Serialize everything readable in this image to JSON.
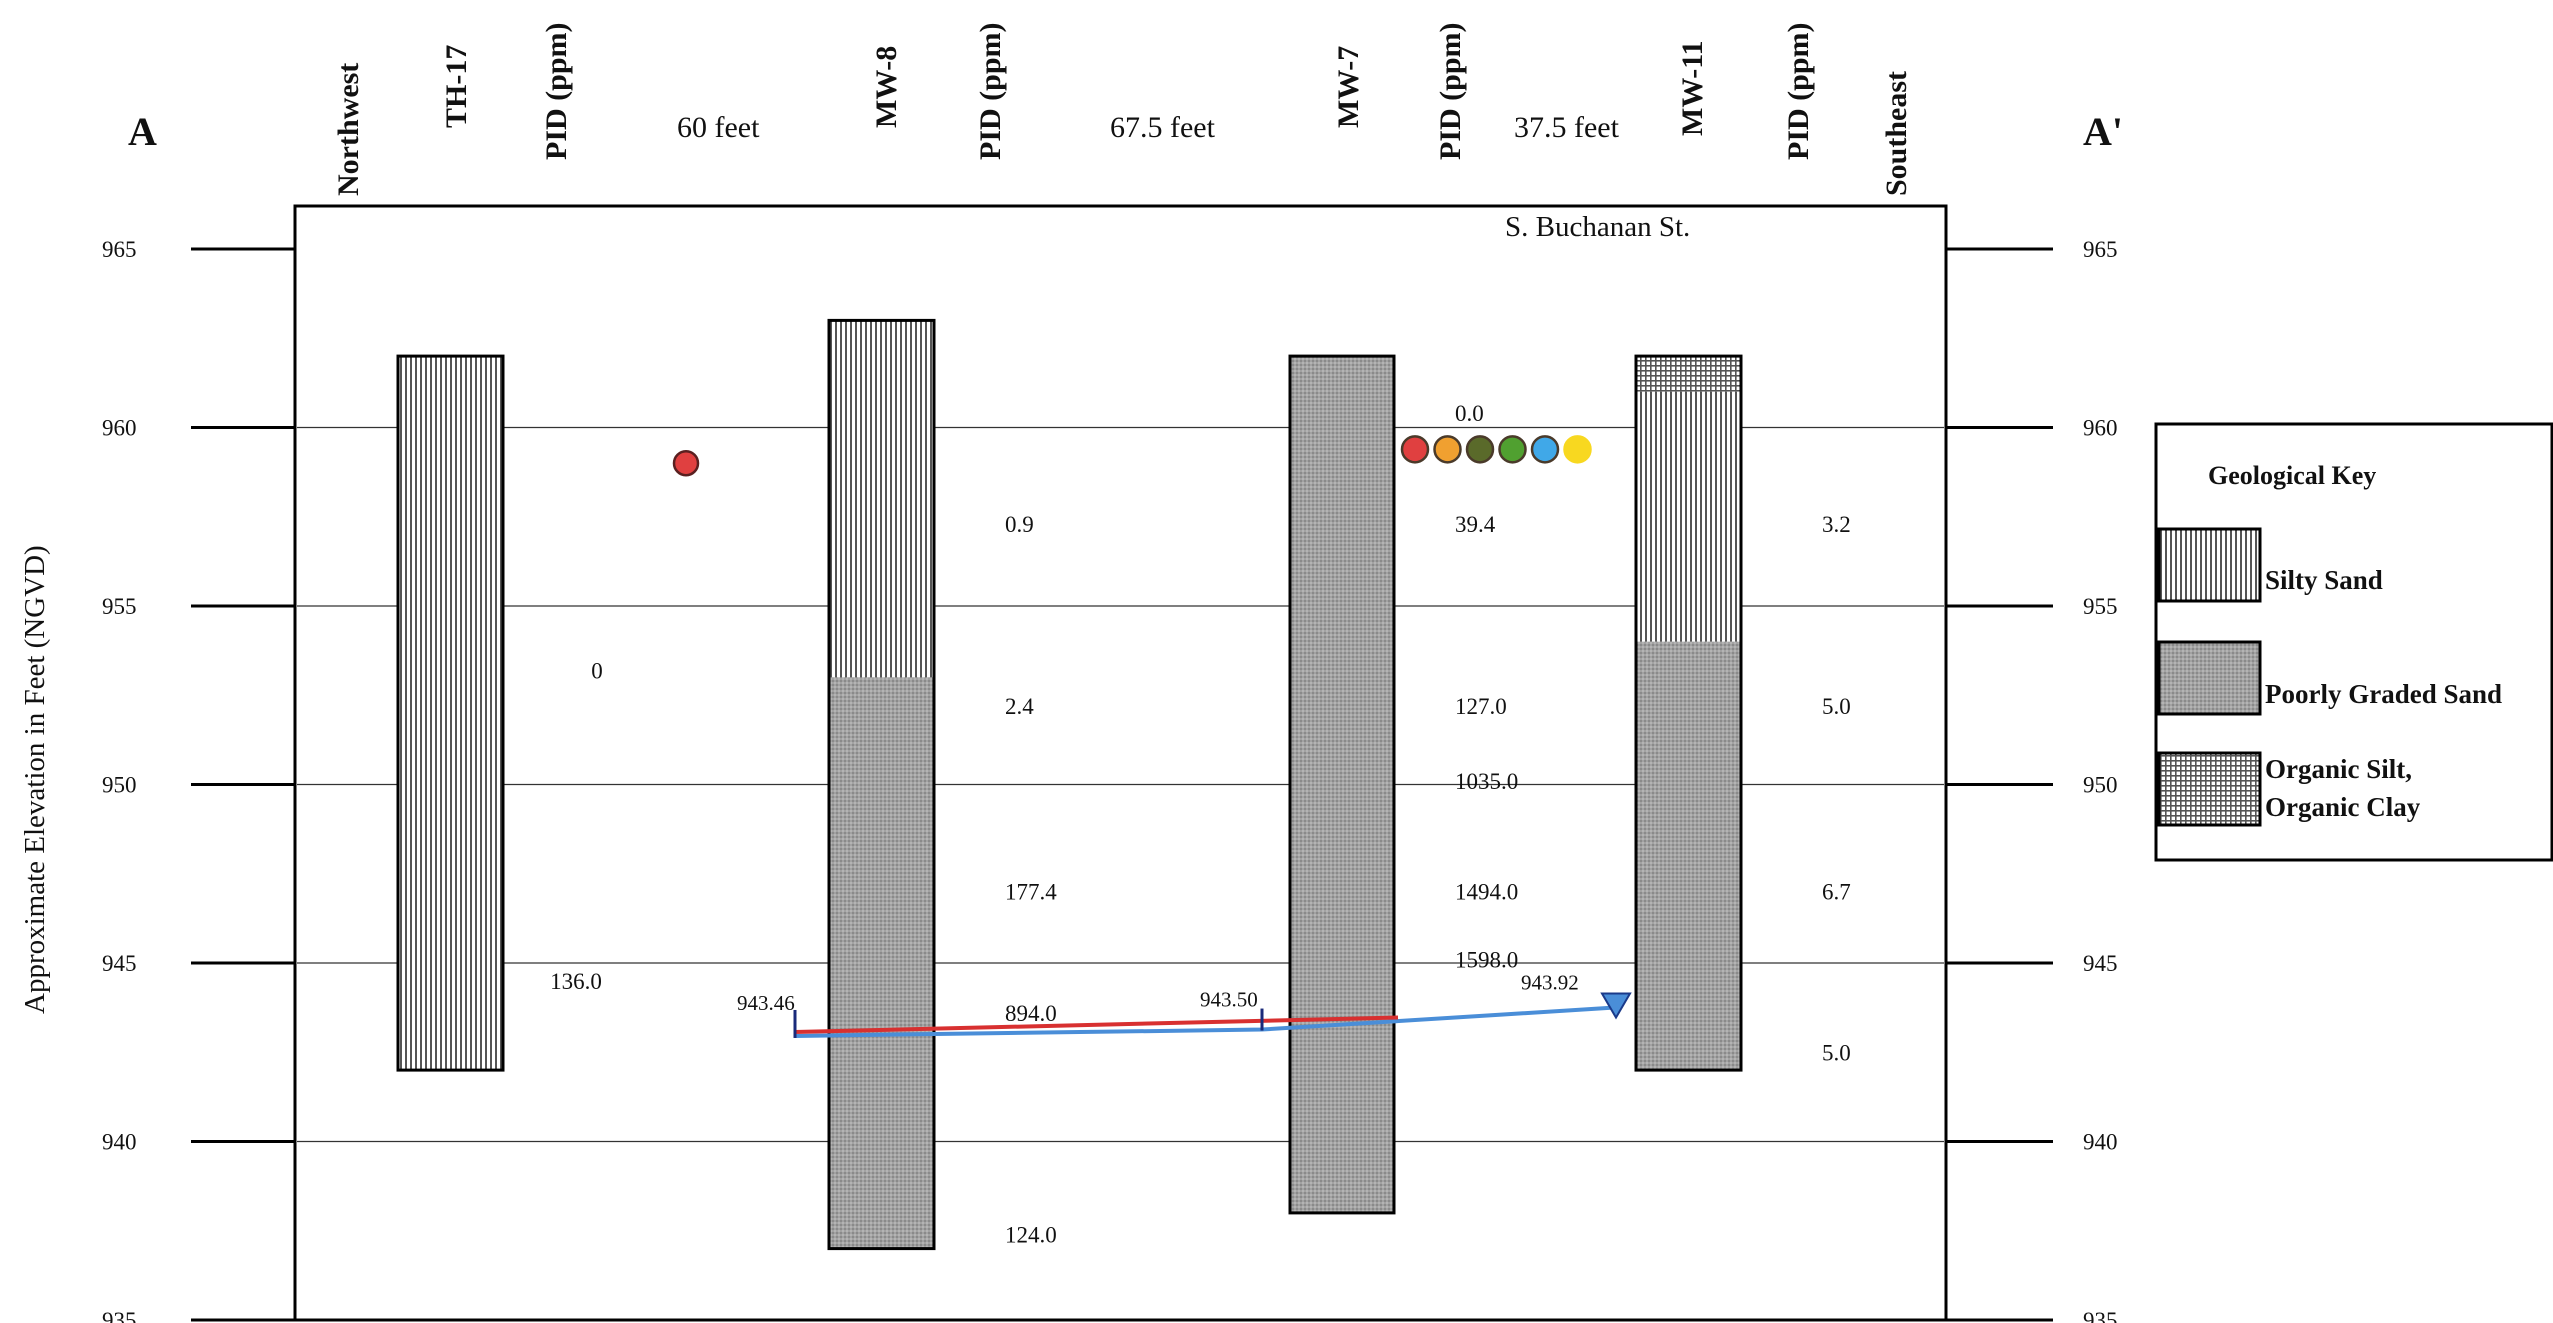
{
  "corner_left": "A",
  "corner_right": "A'",
  "header": {
    "northwest": "Northwest",
    "southeast": "Southeast",
    "wells": [
      {
        "name": "TH-17",
        "pid_label": "PID (ppm)"
      },
      {
        "name": "MW-8",
        "pid_label": "PID (ppm)"
      },
      {
        "name": "MW-7",
        "pid_label": "PID (ppm)"
      },
      {
        "name": "MW-11",
        "pid_label": "PID (ppm)"
      }
    ],
    "distances": [
      "60 feet",
      "67.5 feet",
      "37.5 feet"
    ]
  },
  "street_label": "S. Buchanan St.",
  "y_axis_label": "Approximate Elevation in Feet (NGVD)",
  "elevation_ticks": [
    "965",
    "960",
    "955",
    "950",
    "945",
    "940",
    "935"
  ],
  "chart_data": {
    "type": "cross-section",
    "y_range": [
      935,
      965
    ],
    "ylabel": "Approximate Elevation in Feet (NGVD)",
    "borings": [
      {
        "name": "TH-17",
        "top": 962,
        "bottom": 942,
        "layers": [
          {
            "soil": "silty",
            "top": 962,
            "bottom": 942
          }
        ],
        "pid": [
          {
            "elev": 953.2,
            "value": "0"
          },
          {
            "elev": 944.5,
            "value": "136.0"
          }
        ]
      },
      {
        "name": "MW-8",
        "top": 963,
        "bottom": 937,
        "layers": [
          {
            "soil": "silty",
            "top": 963,
            "bottom": 953
          },
          {
            "soil": "poorly",
            "top": 953,
            "bottom": 937
          }
        ],
        "pid": [
          {
            "elev": 957.3,
            "value": "0.9"
          },
          {
            "elev": 952.2,
            "value": "2.4"
          },
          {
            "elev": 947,
            "value": "177.4"
          },
          {
            "elev": 943.6,
            "value": "894.0"
          },
          {
            "elev": 937.4,
            "value": "124.0"
          }
        ]
      },
      {
        "name": "MW-7",
        "top": 962,
        "bottom": 938,
        "layers": [
          {
            "soil": "poorly",
            "top": 962,
            "bottom": 938
          }
        ],
        "pid": [
          {
            "elev": 960.4,
            "value": "0.0"
          },
          {
            "elev": 957.3,
            "value": "39.4"
          },
          {
            "elev": 952.2,
            "value": "127.0"
          },
          {
            "elev": 950.1,
            "value": "1035.0"
          },
          {
            "elev": 947,
            "value": "1494.0"
          },
          {
            "elev": 945.1,
            "value": "1598.0"
          }
        ]
      },
      {
        "name": "MW-11",
        "top": 962,
        "bottom": 942,
        "layers": [
          {
            "soil": "organic",
            "top": 962,
            "bottom": 961
          },
          {
            "soil": "silty",
            "top": 961,
            "bottom": 954
          },
          {
            "soil": "poorly",
            "top": 954,
            "bottom": 942
          }
        ],
        "pid": [
          {
            "elev": 957.3,
            "value": "3.2"
          },
          {
            "elev": 952.2,
            "value": "5.0"
          },
          {
            "elev": 947,
            "value": "6.7"
          },
          {
            "elev": 942.5,
            "value": "5.0"
          }
        ]
      }
    ],
    "water_levels": [
      {
        "boring": "MW-8",
        "value": "943.46",
        "elev": 943.46
      },
      {
        "boring": "MW-7",
        "value": "943.50",
        "elev": 943.5
      },
      {
        "boring": "MW-11",
        "value": "943.92",
        "elev": 943.92
      }
    ],
    "markers": [
      {
        "location": "between TH-17 and MW-8",
        "elev": 959,
        "colors": [
          "#e04040"
        ]
      },
      {
        "location": "MW-7",
        "elev": 959.5,
        "colors": [
          "#e04040",
          "#f0a030",
          "#5a6a2a",
          "#50a030",
          "#40a8e8",
          "#f8d820"
        ]
      }
    ]
  },
  "legend": {
    "title": "Geological Key",
    "items": [
      {
        "pattern": "silty",
        "label": "Silty Sand"
      },
      {
        "pattern": "poorly",
        "label": "Poorly Graded Sand"
      },
      {
        "pattern": "organic",
        "label_line1": "Organic Silt,",
        "label_line2": "Organic Clay"
      }
    ]
  }
}
